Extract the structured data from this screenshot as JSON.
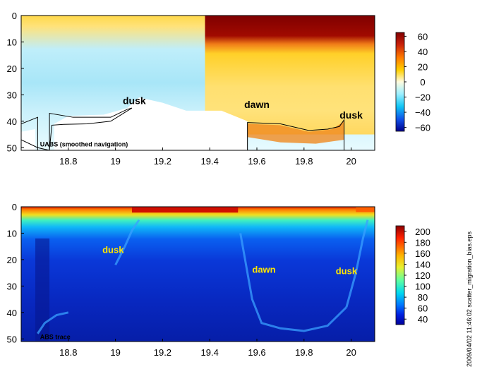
{
  "chart_data": [
    {
      "type": "heatmap",
      "panel": "top",
      "x_ticks": [
        18.8,
        19,
        19.2,
        19.4,
        19.6,
        19.8,
        20
      ],
      "x_tick_labels": [
        "18.8",
        "19",
        "19.2",
        "19.4",
        "19.6",
        "19.8",
        "20"
      ],
      "y_ticks": [
        0,
        10,
        20,
        30,
        40,
        50
      ],
      "y_tick_labels": [
        "0",
        "10",
        "20",
        "30",
        "40",
        "50"
      ],
      "xlim": [
        18.6,
        20.1
      ],
      "ylim": [
        51,
        0
      ],
      "y_reversed": true,
      "colorbar": {
        "colormap": "jet-like diverging",
        "range": [
          -65,
          65
        ],
        "ticks": [
          60,
          40,
          20,
          0,
          -20,
          -40,
          -60
        ],
        "tick_labels": [
          "60",
          "40",
          "20",
          "0",
          "−20",
          "−40",
          "−60"
        ]
      },
      "annotations": [
        {
          "text": "dusk",
          "x": 19.08,
          "y": 33.5
        },
        {
          "text": "dawn",
          "x": 19.6,
          "y": 35
        },
        {
          "text": "dusk",
          "x": 20.0,
          "y": 39
        }
      ],
      "label": "UABS  (smoothed navigation)",
      "label_pos": {
        "x": 18.68,
        "y": 49.5
      },
      "bottom_lines": [
        {
          "x": [
            18.6,
            18.67,
            18.67,
            18.72,
            18.72,
            18.82,
            18.98,
            19.05,
            19.07,
            18.98,
            18.88,
            18.78,
            18.73,
            18.72,
            18.67,
            18.6
          ],
          "y": [
            41,
            38.5,
            51,
            51,
            37,
            38.5,
            38.5,
            35.5,
            35,
            40,
            41,
            41.2,
            41.5,
            51,
            50,
            47
          ]
        },
        {
          "x": [
            19.56,
            19.56,
            19.7,
            19.82,
            19.9,
            19.95,
            19.97,
            19.97
          ],
          "y": [
            51,
            40.5,
            41,
            43.5,
            43,
            42,
            39.5,
            51
          ]
        }
      ]
    },
    {
      "type": "heatmap",
      "panel": "bottom",
      "x_ticks": [
        18.8,
        19,
        19.2,
        19.4,
        19.6,
        19.8,
        20
      ],
      "x_tick_labels": [
        "18.8",
        "19",
        "19.2",
        "19.4",
        "19.6",
        "19.8",
        "20"
      ],
      "y_ticks": [
        0,
        10,
        20,
        30,
        40,
        50
      ],
      "y_tick_labels": [
        "0",
        "10",
        "20",
        "30",
        "40",
        "50"
      ],
      "xlim": [
        18.6,
        20.1
      ],
      "ylim": [
        51,
        0
      ],
      "y_reversed": true,
      "colorbar": {
        "colormap": "jet",
        "range": [
          30,
          210
        ],
        "ticks": [
          200,
          180,
          160,
          140,
          120,
          100,
          80,
          60,
          40
        ],
        "tick_labels": [
          "200",
          "180",
          "160",
          "140",
          "120",
          "100",
          "80",
          "60",
          "40"
        ]
      },
      "annotations": [
        {
          "text": "dusk",
          "x": 18.99,
          "y": 17.5
        },
        {
          "text": "dawn",
          "x": 19.63,
          "y": 25
        },
        {
          "text": "dusk",
          "x": 19.98,
          "y": 25.5
        }
      ],
      "label": "ABS  trace",
      "label_pos": {
        "x": 18.68,
        "y": 50
      },
      "migration_curves": [
        {
          "x": [
            18.67,
            18.7,
            18.75,
            18.8
          ],
          "y": [
            48,
            44,
            41,
            40
          ]
        },
        {
          "x": [
            19.0,
            19.04,
            19.07,
            19.1
          ],
          "y": [
            22,
            15,
            9,
            5
          ]
        },
        {
          "x": [
            19.53,
            19.55,
            19.58,
            19.62,
            19.7,
            19.8,
            19.9,
            19.98
          ],
          "y": [
            10,
            20,
            35,
            44,
            46,
            47,
            45,
            38
          ]
        },
        {
          "x": [
            19.98,
            20.02,
            20.05,
            20.07
          ],
          "y": [
            38,
            25,
            12,
            5
          ]
        }
      ]
    }
  ],
  "side_text": "2009/04/02 11:46:02   scatter_migration_bias.eps"
}
